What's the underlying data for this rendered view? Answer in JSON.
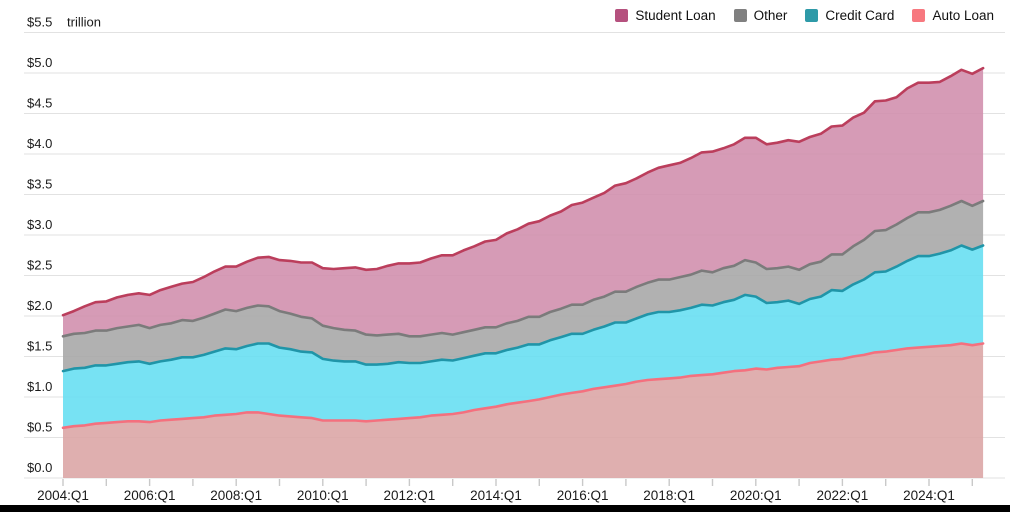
{
  "header": {
    "unit_label": "trillion"
  },
  "legend": [
    {
      "label": "Student Loan",
      "color": "#b5517e"
    },
    {
      "label": "Other",
      "color": "#808080"
    },
    {
      "label": "Credit Card",
      "color": "#2e9aa8"
    },
    {
      "label": "Auto Loan",
      "color": "#f7787f"
    }
  ],
  "chart_data": {
    "type": "area",
    "stacked": true,
    "unit": "trillion",
    "ytick_prefix": "$",
    "ylim": [
      0,
      5.5
    ],
    "ytick_step": 0.5,
    "grid": true,
    "legend_position": "top-right",
    "x": {
      "start": "2004:Q1",
      "end": "2025:Q2",
      "frequency": "quarterly",
      "count": 86,
      "start_year": 2004,
      "years_per_label": 2
    },
    "x_tick_labels": [
      "2004:Q1",
      "2006:Q1",
      "2008:Q1",
      "2010:Q1",
      "2012:Q1",
      "2014:Q1",
      "2016:Q1",
      "2018:Q1",
      "2020:Q1",
      "2022:Q1",
      "2024:Q1"
    ],
    "series": [
      {
        "name": "Auto Loan",
        "line_color": "#f4707e",
        "fill_color": "#dca6a6",
        "values": [
          0.62,
          0.64,
          0.65,
          0.67,
          0.68,
          0.69,
          0.7,
          0.7,
          0.69,
          0.71,
          0.72,
          0.73,
          0.74,
          0.75,
          0.77,
          0.78,
          0.79,
          0.81,
          0.81,
          0.79,
          0.77,
          0.76,
          0.75,
          0.74,
          0.71,
          0.71,
          0.71,
          0.71,
          0.7,
          0.71,
          0.72,
          0.73,
          0.74,
          0.75,
          0.77,
          0.78,
          0.79,
          0.81,
          0.84,
          0.86,
          0.88,
          0.91,
          0.93,
          0.95,
          0.97,
          1.0,
          1.03,
          1.05,
          1.07,
          1.1,
          1.12,
          1.14,
          1.16,
          1.19,
          1.21,
          1.22,
          1.23,
          1.24,
          1.26,
          1.27,
          1.28,
          1.3,
          1.32,
          1.33,
          1.35,
          1.34,
          1.36,
          1.37,
          1.38,
          1.42,
          1.44,
          1.46,
          1.47,
          1.5,
          1.52,
          1.55,
          1.56,
          1.58,
          1.6,
          1.61,
          1.62,
          1.63,
          1.64,
          1.66,
          1.64,
          1.66
        ]
      },
      {
        "name": "Credit Card",
        "line_color": "#2095a8",
        "fill_color": "#68dff2",
        "values": [
          0.7,
          0.71,
          0.71,
          0.72,
          0.71,
          0.72,
          0.73,
          0.74,
          0.72,
          0.73,
          0.74,
          0.76,
          0.75,
          0.77,
          0.79,
          0.82,
          0.8,
          0.82,
          0.85,
          0.87,
          0.84,
          0.83,
          0.81,
          0.81,
          0.76,
          0.74,
          0.73,
          0.73,
          0.7,
          0.69,
          0.69,
          0.7,
          0.68,
          0.67,
          0.67,
          0.68,
          0.66,
          0.67,
          0.67,
          0.68,
          0.66,
          0.67,
          0.68,
          0.7,
          0.68,
          0.7,
          0.71,
          0.73,
          0.71,
          0.73,
          0.75,
          0.78,
          0.76,
          0.78,
          0.81,
          0.83,
          0.82,
          0.83,
          0.84,
          0.87,
          0.85,
          0.87,
          0.88,
          0.93,
          0.89,
          0.82,
          0.81,
          0.82,
          0.77,
          0.79,
          0.8,
          0.86,
          0.84,
          0.89,
          0.93,
          0.99,
          0.99,
          1.03,
          1.08,
          1.13,
          1.12,
          1.14,
          1.17,
          1.21,
          1.18,
          1.21
        ]
      },
      {
        "name": "Other",
        "line_color": "#7b7b7b",
        "fill_color": "#a9a9a9",
        "values": [
          0.43,
          0.43,
          0.43,
          0.43,
          0.43,
          0.44,
          0.44,
          0.45,
          0.44,
          0.45,
          0.45,
          0.46,
          0.45,
          0.46,
          0.47,
          0.48,
          0.47,
          0.47,
          0.47,
          0.46,
          0.45,
          0.44,
          0.43,
          0.42,
          0.41,
          0.4,
          0.39,
          0.38,
          0.37,
          0.36,
          0.36,
          0.35,
          0.33,
          0.33,
          0.33,
          0.33,
          0.32,
          0.32,
          0.32,
          0.32,
          0.32,
          0.33,
          0.33,
          0.34,
          0.34,
          0.35,
          0.35,
          0.36,
          0.36,
          0.37,
          0.37,
          0.38,
          0.38,
          0.39,
          0.39,
          0.4,
          0.4,
          0.41,
          0.41,
          0.42,
          0.41,
          0.42,
          0.42,
          0.43,
          0.42,
          0.42,
          0.42,
          0.42,
          0.42,
          0.43,
          0.43,
          0.44,
          0.45,
          0.47,
          0.49,
          0.51,
          0.51,
          0.52,
          0.53,
          0.54,
          0.54,
          0.54,
          0.55,
          0.55,
          0.54,
          0.55
        ]
      },
      {
        "name": "Student Loan",
        "line_color": "#bb3e5c",
        "fill_color": "#d190ae",
        "values": [
          0.26,
          0.28,
          0.33,
          0.35,
          0.36,
          0.38,
          0.39,
          0.39,
          0.41,
          0.43,
          0.45,
          0.45,
          0.48,
          0.5,
          0.52,
          0.53,
          0.55,
          0.57,
          0.59,
          0.61,
          0.63,
          0.65,
          0.67,
          0.69,
          0.71,
          0.73,
          0.76,
          0.78,
          0.8,
          0.82,
          0.85,
          0.87,
          0.9,
          0.91,
          0.94,
          0.96,
          0.98,
          1.01,
          1.03,
          1.06,
          1.08,
          1.11,
          1.13,
          1.15,
          1.18,
          1.19,
          1.2,
          1.23,
          1.26,
          1.26,
          1.28,
          1.31,
          1.34,
          1.34,
          1.36,
          1.38,
          1.41,
          1.41,
          1.44,
          1.46,
          1.49,
          1.48,
          1.5,
          1.51,
          1.54,
          1.54,
          1.55,
          1.56,
          1.58,
          1.57,
          1.58,
          1.58,
          1.59,
          1.59,
          1.57,
          1.6,
          1.6,
          1.57,
          1.6,
          1.6,
          1.6,
          1.58,
          1.6,
          1.62,
          1.63,
          1.64
        ]
      }
    ],
    "colors": {
      "gridline": "#e2e2e2",
      "tick": "#c9c9c9",
      "axis_text": "#1a1a1a"
    }
  }
}
